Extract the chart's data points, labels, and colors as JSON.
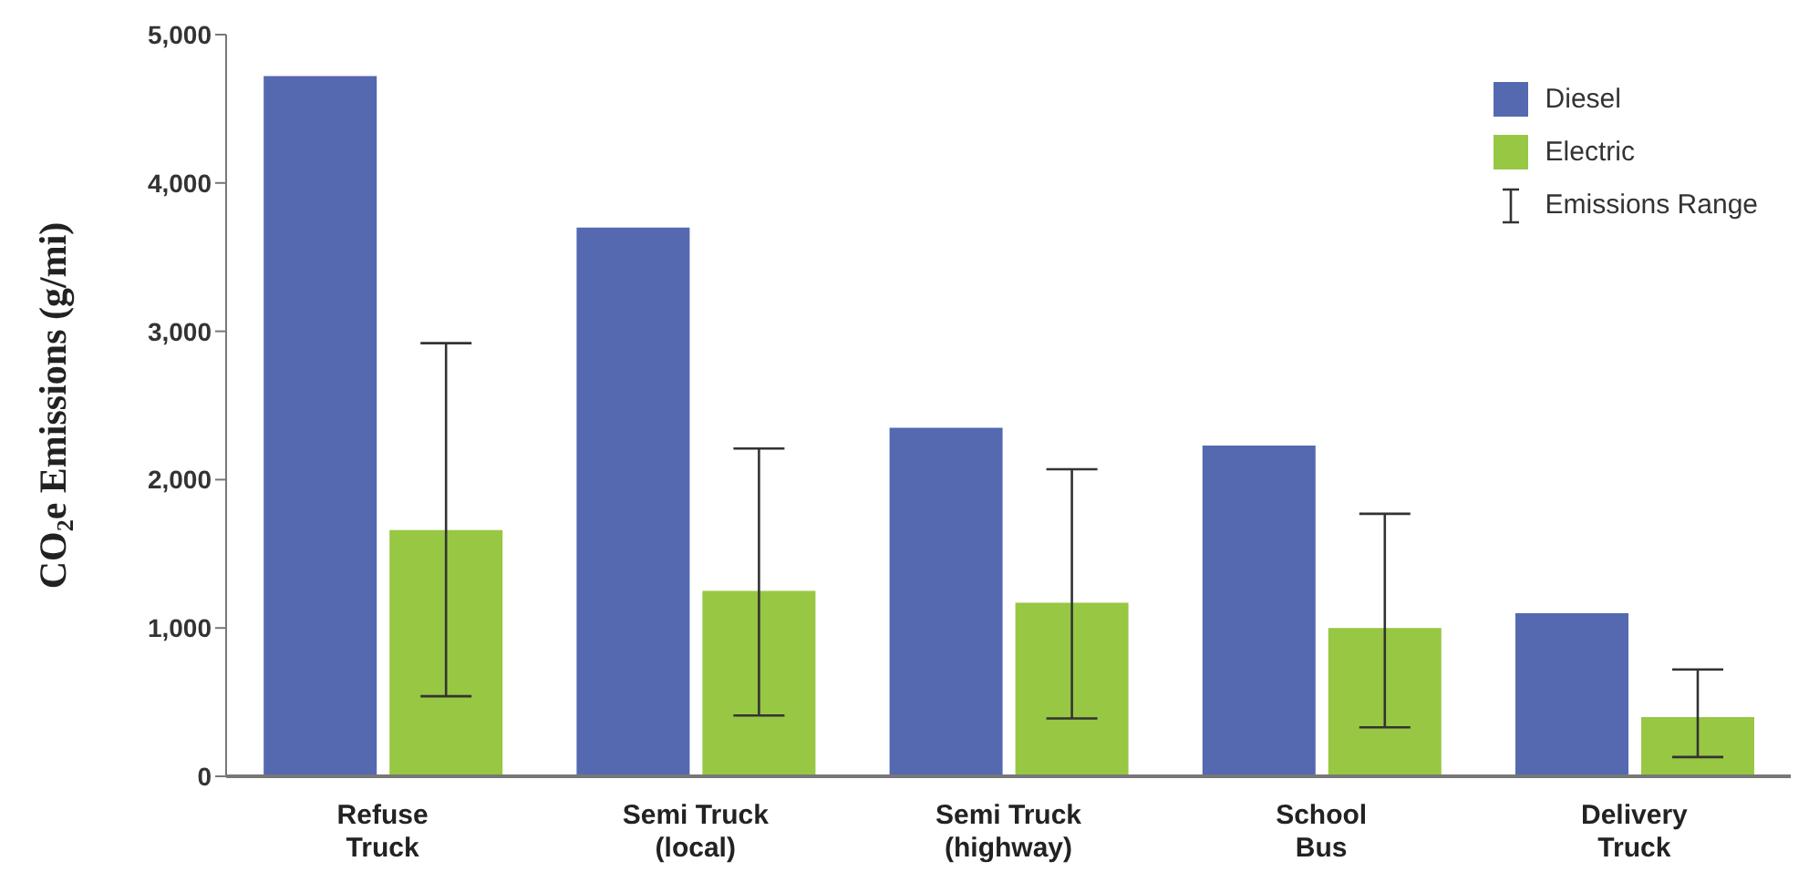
{
  "chart_data": {
    "type": "bar",
    "ylabel": "CO$_{2}$e Emissions (g/mi)",
    "categories": [
      "Refuse\nTruck",
      "Semi Truck\n(local)",
      "Semi Truck\n(highway)",
      "School\nBus",
      "Delivery\nTruck"
    ],
    "series": [
      {
        "name": "Diesel",
        "color": "#5469b0",
        "values": [
          4720,
          3700,
          2350,
          2230,
          1100
        ]
      },
      {
        "name": "Electric",
        "color": "#98c743",
        "values": [
          1660,
          1250,
          1170,
          1000,
          400
        ],
        "errors": [
          [
            540,
            2920
          ],
          [
            410,
            2210
          ],
          [
            390,
            2070
          ],
          [
            330,
            1770
          ],
          [
            130,
            720
          ]
        ]
      }
    ],
    "annotations": [
      "Emissions Range"
    ],
    "ylim": [
      0,
      5000
    ],
    "yticks": [
      0,
      {
        "value": 1000,
        "label": "1,000"
      },
      {
        "value": 2000,
        "label": "2,000"
      },
      {
        "value": 3000,
        "label": "3,000"
      },
      {
        "value": 4000,
        "label": "4,000"
      },
      {
        "value": 5000,
        "label": "5,000"
      }
    ],
    "grid": false,
    "legend": "top right"
  }
}
